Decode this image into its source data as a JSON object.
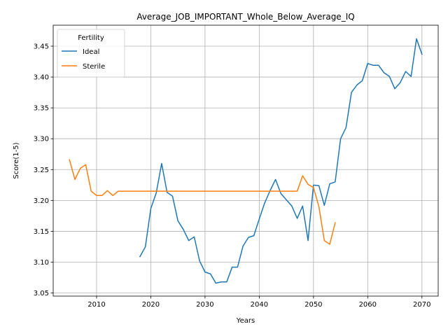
{
  "chart_data": {
    "type": "line",
    "title": "Average_JOB_IMPORTANT_Whole_Below_Average_IQ",
    "xlabel": "Years",
    "ylabel": "Score(1-5)",
    "xlim": [
      2002,
      2073
    ],
    "ylim": [
      3.045,
      3.484
    ],
    "xticks": [
      2010,
      2020,
      2030,
      2040,
      2050,
      2060,
      2070
    ],
    "yticks": [
      3.05,
      3.1,
      3.15,
      3.2,
      3.25,
      3.3,
      3.35,
      3.4,
      3.45
    ],
    "grid": true,
    "legend": {
      "title": "Fertility",
      "placement": "upper-left"
    },
    "series": [
      {
        "name": "Ideal",
        "color": "#1f77b4",
        "x": [
          2018,
          2019,
          2020,
          2021,
          2022,
          2023,
          2024,
          2025,
          2026,
          2027,
          2028,
          2029,
          2030,
          2031,
          2032,
          2033,
          2034,
          2035,
          2036,
          2037,
          2038,
          2039,
          2040,
          2041,
          2042,
          2043,
          2044,
          2045,
          2046,
          2047,
          2048,
          2049,
          2050,
          2051,
          2052,
          2053,
          2054,
          2055,
          2056,
          2057,
          2058,
          2059,
          2060,
          2061,
          2062,
          2063,
          2064,
          2065,
          2066,
          2067,
          2068,
          2069,
          2070
        ],
        "y": [
          3.109,
          3.125,
          3.187,
          3.212,
          3.26,
          3.213,
          3.207,
          3.167,
          3.153,
          3.135,
          3.141,
          3.102,
          3.084,
          3.081,
          3.066,
          3.068,
          3.068,
          3.092,
          3.092,
          3.126,
          3.14,
          3.143,
          3.17,
          3.196,
          3.216,
          3.234,
          3.211,
          3.201,
          3.191,
          3.171,
          3.191,
          3.135,
          3.225,
          3.224,
          3.192,
          3.227,
          3.23,
          3.3,
          3.318,
          3.375,
          3.387,
          3.394,
          3.422,
          3.419,
          3.419,
          3.407,
          3.401,
          3.381,
          3.391,
          3.409,
          3.401,
          3.462,
          3.437
        ]
      },
      {
        "name": "Sterile",
        "color": "#ff7f0e",
        "x": [
          2005,
          2006,
          2007,
          2008,
          2009,
          2010,
          2011,
          2012,
          2013,
          2014,
          2015,
          2016,
          2017,
          2018,
          2019,
          2020,
          2021,
          2022,
          2023,
          2024,
          2025,
          2026,
          2027,
          2028,
          2029,
          2030,
          2031,
          2032,
          2033,
          2034,
          2035,
          2036,
          2037,
          2038,
          2039,
          2040,
          2041,
          2042,
          2043,
          2044,
          2045,
          2046,
          2047,
          2048,
          2049,
          2050,
          2051,
          2052,
          2053,
          2054
        ],
        "y": [
          3.266,
          3.234,
          3.252,
          3.258,
          3.215,
          3.208,
          3.208,
          3.216,
          3.208,
          3.215,
          3.215,
          3.215,
          3.215,
          3.215,
          3.215,
          3.215,
          3.215,
          3.215,
          3.215,
          3.215,
          3.215,
          3.215,
          3.215,
          3.215,
          3.215,
          3.215,
          3.215,
          3.215,
          3.215,
          3.215,
          3.215,
          3.215,
          3.215,
          3.215,
          3.215,
          3.215,
          3.215,
          3.215,
          3.215,
          3.215,
          3.215,
          3.215,
          3.215,
          3.24,
          3.226,
          3.221,
          3.19,
          3.135,
          3.129,
          3.164
        ]
      }
    ]
  }
}
